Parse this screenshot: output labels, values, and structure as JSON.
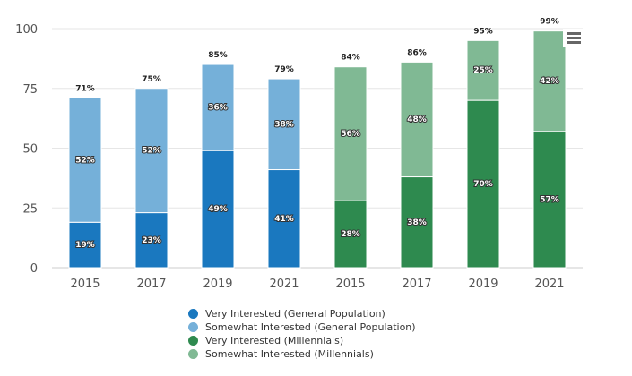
{
  "chart_data": {
    "type": "bar",
    "stacked": true,
    "categories": [
      "2015",
      "2017",
      "2019",
      "2021",
      "2015",
      "2017",
      "2019",
      "2021"
    ],
    "series": [
      {
        "name": "Very Interested (General Population)",
        "color": "#1a78bf",
        "values": [
          19,
          23,
          49,
          41,
          null,
          null,
          null,
          null
        ],
        "labels": [
          "19%",
          "23%",
          "49%",
          "41%",
          null,
          null,
          null,
          null
        ]
      },
      {
        "name": "Somewhat Interested (General Population)",
        "color": "#75b0d9",
        "values": [
          52,
          52,
          36,
          38,
          null,
          null,
          null,
          null
        ],
        "labels": [
          "52%",
          "52%",
          "36%",
          "38%",
          null,
          null,
          null,
          null
        ]
      },
      {
        "name": "Very Interested (Millennials)",
        "color": "#2e8a4f",
        "values": [
          null,
          null,
          null,
          null,
          28,
          38,
          70,
          57
        ],
        "labels": [
          null,
          null,
          null,
          null,
          "28%",
          "38%",
          "70%",
          "57%"
        ]
      },
      {
        "name": "Somewhat Interested (Millennials)",
        "color": "#80b994",
        "values": [
          null,
          null,
          null,
          null,
          56,
          48,
          25,
          42
        ],
        "labels": [
          null,
          null,
          null,
          null,
          "56%",
          "48%",
          "25%",
          "42%"
        ]
      }
    ],
    "totals": [
      "71%",
      "75%",
      "85%",
      "79%",
      "84%",
      "86%",
      "95%",
      "99%"
    ],
    "yticks": [
      "0",
      "25",
      "50",
      "75",
      "100"
    ],
    "ylim": [
      0,
      100
    ],
    "grid": true,
    "legend_position": "bottom-center",
    "title": "",
    "xlabel": "",
    "ylabel": ""
  },
  "legend": [
    {
      "label": "Very Interested (General Population)",
      "color": "#1a78bf"
    },
    {
      "label": "Somewhat Interested (General Population)",
      "color": "#75b0d9"
    },
    {
      "label": "Very Interested (Millennials)",
      "color": "#2e8a4f"
    },
    {
      "label": "Somewhat Interested (Millennials)",
      "color": "#80b994"
    }
  ],
  "menu": {
    "icon": "hamburger-menu-icon"
  }
}
